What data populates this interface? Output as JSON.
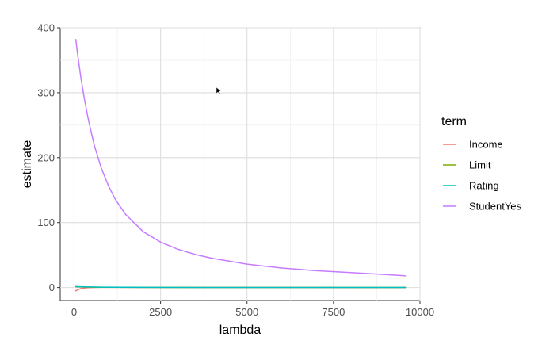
{
  "chart_data": {
    "type": "line",
    "title": "",
    "xlabel": "lambda",
    "ylabel": "estimate",
    "xlim": [
      -400,
      10000
    ],
    "ylim": [
      -20,
      400
    ],
    "x_ticks": [
      0,
      2500,
      5000,
      7500,
      10000
    ],
    "x_tick_labels": [
      "0",
      "2500",
      "5000",
      "7500",
      "10000"
    ],
    "y_ticks": [
      0,
      100,
      200,
      300,
      400
    ],
    "y_tick_labels": [
      "0",
      "100",
      "200",
      "300",
      "400"
    ],
    "grid": true,
    "legend": {
      "title": "term",
      "position": "right"
    },
    "series": [
      {
        "name": "Income",
        "color": "#F8766D",
        "x": [
          50,
          100,
          200,
          300,
          400,
          600,
          800,
          1200,
          2000,
          4000,
          6000,
          8000,
          9600
        ],
        "y": [
          -5,
          -3.5,
          -1.5,
          -0.6,
          -0.1,
          0.2,
          0.3,
          0.3,
          0.2,
          0.1,
          0.1,
          0.05,
          0.05
        ]
      },
      {
        "name": "Limit",
        "color": "#7CAE00",
        "x": [
          50,
          100,
          200,
          400,
          800,
          2000,
          4000,
          6000,
          8000,
          9600
        ],
        "y": [
          1.2,
          1.1,
          0.9,
          0.7,
          0.5,
          0.3,
          0.2,
          0.1,
          0.1,
          0.1
        ]
      },
      {
        "name": "Rating",
        "color": "#00BFC4",
        "x": [
          50,
          100,
          200,
          400,
          800,
          2000,
          4000,
          6000,
          8000,
          9600
        ],
        "y": [
          1.5,
          1.4,
          1.2,
          0.9,
          0.6,
          0.3,
          0.2,
          0.1,
          0.1,
          0.1
        ]
      },
      {
        "name": "StudentYes",
        "color": "#C77CFF",
        "x": [
          50,
          100,
          200,
          300,
          400,
          500,
          600,
          800,
          1000,
          1200,
          1500,
          2000,
          2500,
          3000,
          3500,
          4000,
          5000,
          6000,
          7000,
          8000,
          9000,
          9600
        ],
        "y": [
          382,
          360,
          322,
          290,
          262,
          238,
          216,
          182,
          156,
          135,
          112,
          86,
          70,
          59,
          51,
          45,
          36,
          30,
          26,
          23,
          20,
          18
        ]
      }
    ]
  }
}
